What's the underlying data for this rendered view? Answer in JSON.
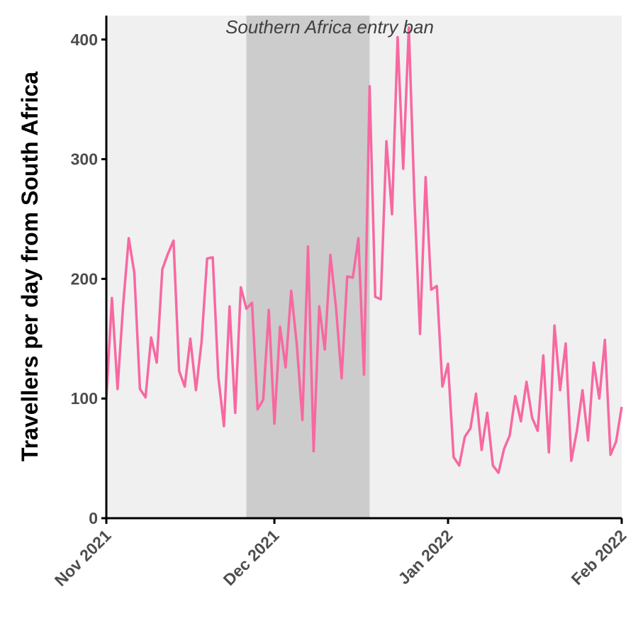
{
  "chart_data": {
    "type": "line",
    "title": "",
    "xlabel": "",
    "ylabel": "Travellers per day from South Africa",
    "x_start": "2021-11-01",
    "x_end": "2022-02-01",
    "x_ticks": [
      {
        "label": "Nov 2021",
        "date": "2021-11-01"
      },
      {
        "label": "Dec 2021",
        "date": "2021-12-01"
      },
      {
        "label": "Jan 2022",
        "date": "2022-01-01"
      },
      {
        "label": "Feb 2022",
        "date": "2022-02-01"
      }
    ],
    "ylim": [
      0,
      420
    ],
    "y_ticks": [
      0,
      100,
      200,
      300,
      400
    ],
    "grid": false,
    "line_color": "#f768a1",
    "background_color": "#f0f0f0",
    "shaded_region": {
      "label": "Southern Africa entry ban",
      "start": "2021-11-26",
      "end": "2021-12-18",
      "color": "#cccccc"
    },
    "series": [
      {
        "dates": [
          "2021-11-01",
          "2021-11-02",
          "2021-11-03",
          "2021-11-04",
          "2021-11-05",
          "2021-11-06",
          "2021-11-07",
          "2021-11-08",
          "2021-11-09",
          "2021-11-10",
          "2021-11-11",
          "2021-11-12",
          "2021-11-13",
          "2021-11-14",
          "2021-11-15",
          "2021-11-16",
          "2021-11-17",
          "2021-11-18",
          "2021-11-19",
          "2021-11-20",
          "2021-11-21",
          "2021-11-22",
          "2021-11-23",
          "2021-11-24",
          "2021-11-25",
          "2021-11-26",
          "2021-11-27",
          "2021-11-28",
          "2021-11-29",
          "2021-11-30",
          "2021-12-01",
          "2021-12-02",
          "2021-12-03",
          "2021-12-04",
          "2021-12-05",
          "2021-12-06",
          "2021-12-07",
          "2021-12-08",
          "2021-12-09",
          "2021-12-10",
          "2021-12-11",
          "2021-12-12",
          "2021-12-13",
          "2021-12-14",
          "2021-12-15",
          "2021-12-16",
          "2021-12-17",
          "2021-12-18",
          "2021-12-19",
          "2021-12-20",
          "2021-12-21",
          "2021-12-22",
          "2021-12-23",
          "2021-12-24",
          "2021-12-25",
          "2021-12-26",
          "2021-12-27",
          "2021-12-28",
          "2021-12-29",
          "2021-12-30",
          "2021-12-31",
          "2022-01-01",
          "2022-01-02",
          "2022-01-03",
          "2022-01-04",
          "2022-01-05",
          "2022-01-06",
          "2022-01-07",
          "2022-01-08",
          "2022-01-09",
          "2022-01-10",
          "2022-01-11",
          "2022-01-12",
          "2022-01-13",
          "2022-01-14",
          "2022-01-15",
          "2022-01-16",
          "2022-01-17",
          "2022-01-18",
          "2022-01-19",
          "2022-01-20",
          "2022-01-21",
          "2022-01-22",
          "2022-01-23",
          "2022-01-24",
          "2022-01-25",
          "2022-01-26",
          "2022-01-27",
          "2022-01-28",
          "2022-01-29",
          "2022-01-30",
          "2022-01-31",
          "2022-02-01"
        ],
        "values": [
          100,
          184,
          108,
          178,
          234,
          205,
          108,
          101,
          151,
          130,
          208,
          221,
          232,
          123,
          110,
          150,
          107,
          147,
          217,
          218,
          118,
          77,
          177,
          88,
          193,
          175,
          180,
          91,
          99,
          174,
          79,
          160,
          126,
          190,
          145,
          82,
          227,
          56,
          177,
          141,
          220,
          176,
          117,
          202,
          201,
          234,
          120,
          361,
          185,
          183,
          315,
          254,
          402,
          292,
          410,
          267,
          154,
          285,
          191,
          194,
          110,
          129,
          51,
          44,
          68,
          75,
          104,
          57,
          88,
          44,
          38,
          58,
          69,
          102,
          81,
          114,
          84,
          73,
          136,
          55,
          161,
          107,
          146,
          48,
          73,
          107,
          65,
          130,
          100,
          149,
          53,
          64,
          93
        ]
      }
    ]
  }
}
